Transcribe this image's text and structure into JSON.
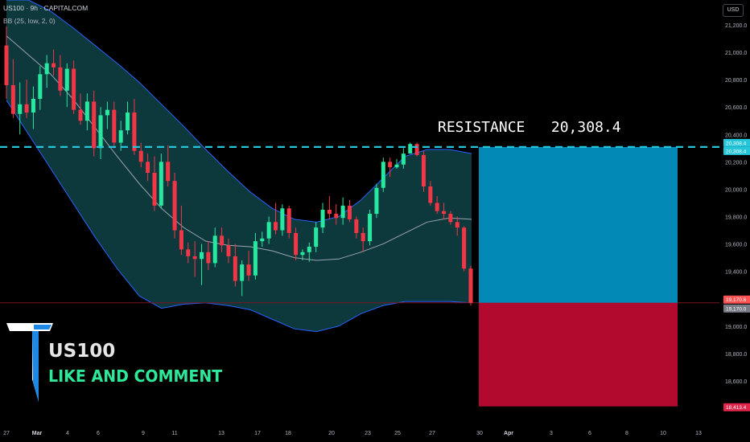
{
  "header": {
    "symbol_line": "US100 · 9h · CAPITALCOM",
    "indicator_line": "BB (25, low, 2, 0)",
    "currency": "USD"
  },
  "annotation": {
    "label": "RESISTANCE   20,308.4"
  },
  "branding": {
    "title": "US100",
    "subtitle": "LIKE AND COMMENT"
  },
  "price_tags": [
    {
      "text": "20,308.4",
      "color": "#26c6da"
    },
    {
      "text": "20,308.4",
      "color": "#26c6da"
    },
    {
      "text": "19,170.6",
      "color": "#ff5252"
    },
    {
      "text": "19,170.0",
      "color": "#787b86"
    },
    {
      "text": "18,413.4",
      "color": "#e0254a"
    }
  ],
  "chart_data": {
    "type": "candlestick",
    "title": "",
    "ylim": [
      18300,
      21300
    ],
    "y_ticks": [
      21200,
      21000,
      20800,
      20600,
      20400,
      20200,
      20000,
      19800,
      19600,
      19400,
      19200,
      19000,
      18800,
      18600,
      18400
    ],
    "y_tick_labels": [
      "21,200.0",
      "21,000.0",
      "20,800.0",
      "20,600.0",
      "20,400.0",
      "20,200.0",
      "20,000.0",
      "19,800.0",
      "19,600.0",
      "19,400.0",
      "19,200.0",
      "19,000.0",
      "18,800.0",
      "18,600.0",
      "18,400.0"
    ],
    "x_tick_labels": [
      "27",
      "Mar",
      "4",
      "6",
      "9",
      "11",
      "13",
      "17",
      "18",
      "20",
      "23",
      "25",
      "27",
      "30",
      "Apr",
      "3",
      "6",
      "8",
      "10",
      "13"
    ],
    "candles": [
      [
        21050,
        21190,
        20660,
        20760
      ],
      [
        20760,
        20950,
        20520,
        20550
      ],
      [
        20550,
        20780,
        20400,
        20620
      ],
      [
        20620,
        20800,
        20520,
        20560
      ],
      [
        20560,
        20750,
        20440,
        20660
      ],
      [
        20660,
        20900,
        20580,
        20840
      ],
      [
        20840,
        20980,
        20740,
        20920
      ],
      [
        20920,
        21020,
        20830,
        20890
      ],
      [
        20890,
        20980,
        20680,
        20720
      ],
      [
        20720,
        20920,
        20600,
        20880
      ],
      [
        20880,
        20940,
        20550,
        20580
      ],
      [
        20580,
        20700,
        20470,
        20500
      ],
      [
        20500,
        20700,
        20430,
        20640
      ],
      [
        20640,
        20720,
        20240,
        20300
      ],
      [
        20300,
        20600,
        20220,
        20540
      ],
      [
        20540,
        20640,
        20440,
        20580
      ],
      [
        20580,
        20640,
        20300,
        20340
      ],
      [
        20340,
        20500,
        20280,
        20430
      ],
      [
        20430,
        20640,
        20400,
        20560
      ],
      [
        20560,
        20660,
        20250,
        20280
      ],
      [
        20280,
        20340,
        20160,
        20200
      ],
      [
        20200,
        20260,
        20060,
        20120
      ],
      [
        20120,
        20240,
        19840,
        19880
      ],
      [
        19880,
        20260,
        19860,
        20200
      ],
      [
        20200,
        20320,
        20020,
        20060
      ],
      [
        20060,
        20120,
        19640,
        19700
      ],
      [
        19700,
        19880,
        19520,
        19560
      ],
      [
        19560,
        19610,
        19460,
        19510
      ],
      [
        19510,
        19620,
        19360,
        19490
      ],
      [
        19490,
        19600,
        19300,
        19540
      ],
      [
        19540,
        19620,
        19410,
        19460
      ],
      [
        19460,
        19720,
        19430,
        19660
      ],
      [
        19660,
        19720,
        19540,
        19590
      ],
      [
        19590,
        19640,
        19460,
        19510
      ],
      [
        19510,
        19600,
        19290,
        19330
      ],
      [
        19330,
        19480,
        19220,
        19450
      ],
      [
        19450,
        19550,
        19330,
        19370
      ],
      [
        19370,
        19680,
        19340,
        19620
      ],
      [
        19620,
        19690,
        19580,
        19640
      ],
      [
        19640,
        19800,
        19600,
        19760
      ],
      [
        19760,
        19900,
        19670,
        19700
      ],
      [
        19700,
        19890,
        19660,
        19860
      ],
      [
        19860,
        19880,
        19640,
        19680
      ],
      [
        19680,
        19720,
        19480,
        19520
      ],
      [
        19520,
        19560,
        19480,
        19540
      ],
      [
        19540,
        19610,
        19470,
        19580
      ],
      [
        19580,
        19760,
        19540,
        19720
      ],
      [
        19720,
        19900,
        19680,
        19850
      ],
      [
        19850,
        19950,
        19780,
        19820
      ],
      [
        19820,
        19890,
        19740,
        19790
      ],
      [
        19790,
        19940,
        19740,
        19880
      ],
      [
        19880,
        19920,
        19760,
        19780
      ],
      [
        19780,
        19800,
        19640,
        19680
      ],
      [
        19680,
        19720,
        19540,
        19620
      ],
      [
        19620,
        19850,
        19590,
        19820
      ],
      [
        19820,
        20040,
        19790,
        20010
      ],
      [
        20010,
        20230,
        19980,
        20200
      ],
      [
        20200,
        20230,
        20090,
        20160
      ],
      [
        20160,
        20220,
        20150,
        20180
      ],
      [
        20180,
        20300,
        20150,
        20260
      ],
      [
        20260,
        20340,
        20260,
        20330
      ],
      [
        20330,
        20340,
        20240,
        20250
      ],
      [
        20250,
        20280,
        19980,
        20020
      ],
      [
        20020,
        20060,
        19880,
        19900
      ],
      [
        19900,
        19950,
        19820,
        19840
      ],
      [
        19840,
        19900,
        19780,
        19820
      ],
      [
        19820,
        19840,
        19740,
        19760
      ],
      [
        19760,
        19800,
        19660,
        19720
      ],
      [
        19720,
        19730,
        19400,
        19420
      ],
      [
        19420,
        19440,
        19150,
        19170
      ]
    ],
    "bb_upper": [
      21500,
      21400,
      21300,
      21180,
      21050,
      20920,
      20780,
      20620,
      20460,
      20290,
      20130,
      19980,
      19860,
      19780,
      19760,
      19800,
      19920,
      20080,
      20240,
      20290,
      20290,
      20260
    ],
    "bb_lower": [
      20650,
      20400,
      20150,
      19900,
      19650,
      19420,
      19220,
      19130,
      19160,
      19170,
      19150,
      19120,
      19050,
      18980,
      18960,
      19000,
      19090,
      19150,
      19180,
      19180,
      19180,
      19170
    ],
    "bb_mid": [
      21120,
      20980,
      20840,
      20660,
      20450,
      20240,
      20040,
      19860,
      19720,
      19620,
      19590,
      19580,
      19550,
      19500,
      19480,
      19490,
      19540,
      19600,
      19680,
      19760,
      19790,
      19780
    ],
    "resistance": 20308.4,
    "current_price": 19170.6,
    "entry_price": 19170.0,
    "target_low": 18413.4,
    "colors": {
      "up": "#26e8a0",
      "down": "#f23645",
      "band_fill": "#0e3c40",
      "band_line": "#2962ff",
      "basis_line": "#9aa3ad",
      "resistance_line": "#26c6da",
      "zone_top": "#0289b5",
      "zone_bottom": "#b20a2e",
      "grid": "#0a0a0a",
      "axis_text": "#b2b5be"
    }
  }
}
